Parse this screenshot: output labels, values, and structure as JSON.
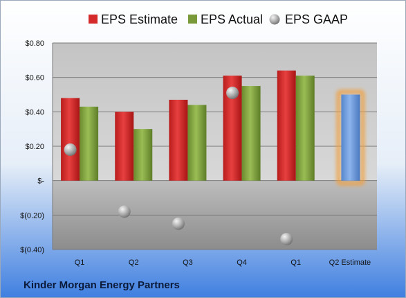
{
  "chart_data": {
    "type": "bar",
    "categories": [
      "Q1",
      "Q2",
      "Q3",
      "Q4",
      "Q1",
      "Q2 Estimate"
    ],
    "series": [
      {
        "name": "EPS Estimate",
        "color": "#d42a2a",
        "values": [
          0.48,
          0.4,
          0.47,
          0.61,
          0.64,
          null
        ]
      },
      {
        "name": "EPS Actual",
        "color": "#7a9a3a",
        "values": [
          0.43,
          0.3,
          0.44,
          0.55,
          0.61,
          null
        ]
      },
      {
        "name": "EPS GAAP",
        "color": "#a8a8a8",
        "marker": "sphere",
        "values": [
          0.18,
          -0.18,
          -0.25,
          0.51,
          -0.34,
          null
        ]
      },
      {
        "name": "",
        "color": "#6a9ad8",
        "highlight": "#f0a040",
        "values": [
          null,
          null,
          null,
          null,
          null,
          0.5
        ]
      }
    ],
    "yticks": [
      0.8,
      0.6,
      0.4,
      0.2,
      0,
      -0.2,
      -0.4
    ],
    "ytick_labels": [
      "$0.80",
      "$0.60",
      "$0.40",
      "$0.20",
      "$-",
      "$(0.20)",
      "$(0.40)"
    ],
    "ylim": [
      -0.4,
      0.8
    ],
    "grid": true,
    "legend": "top"
  },
  "footer": {
    "company": "Kinder Morgan Energy Partners"
  }
}
